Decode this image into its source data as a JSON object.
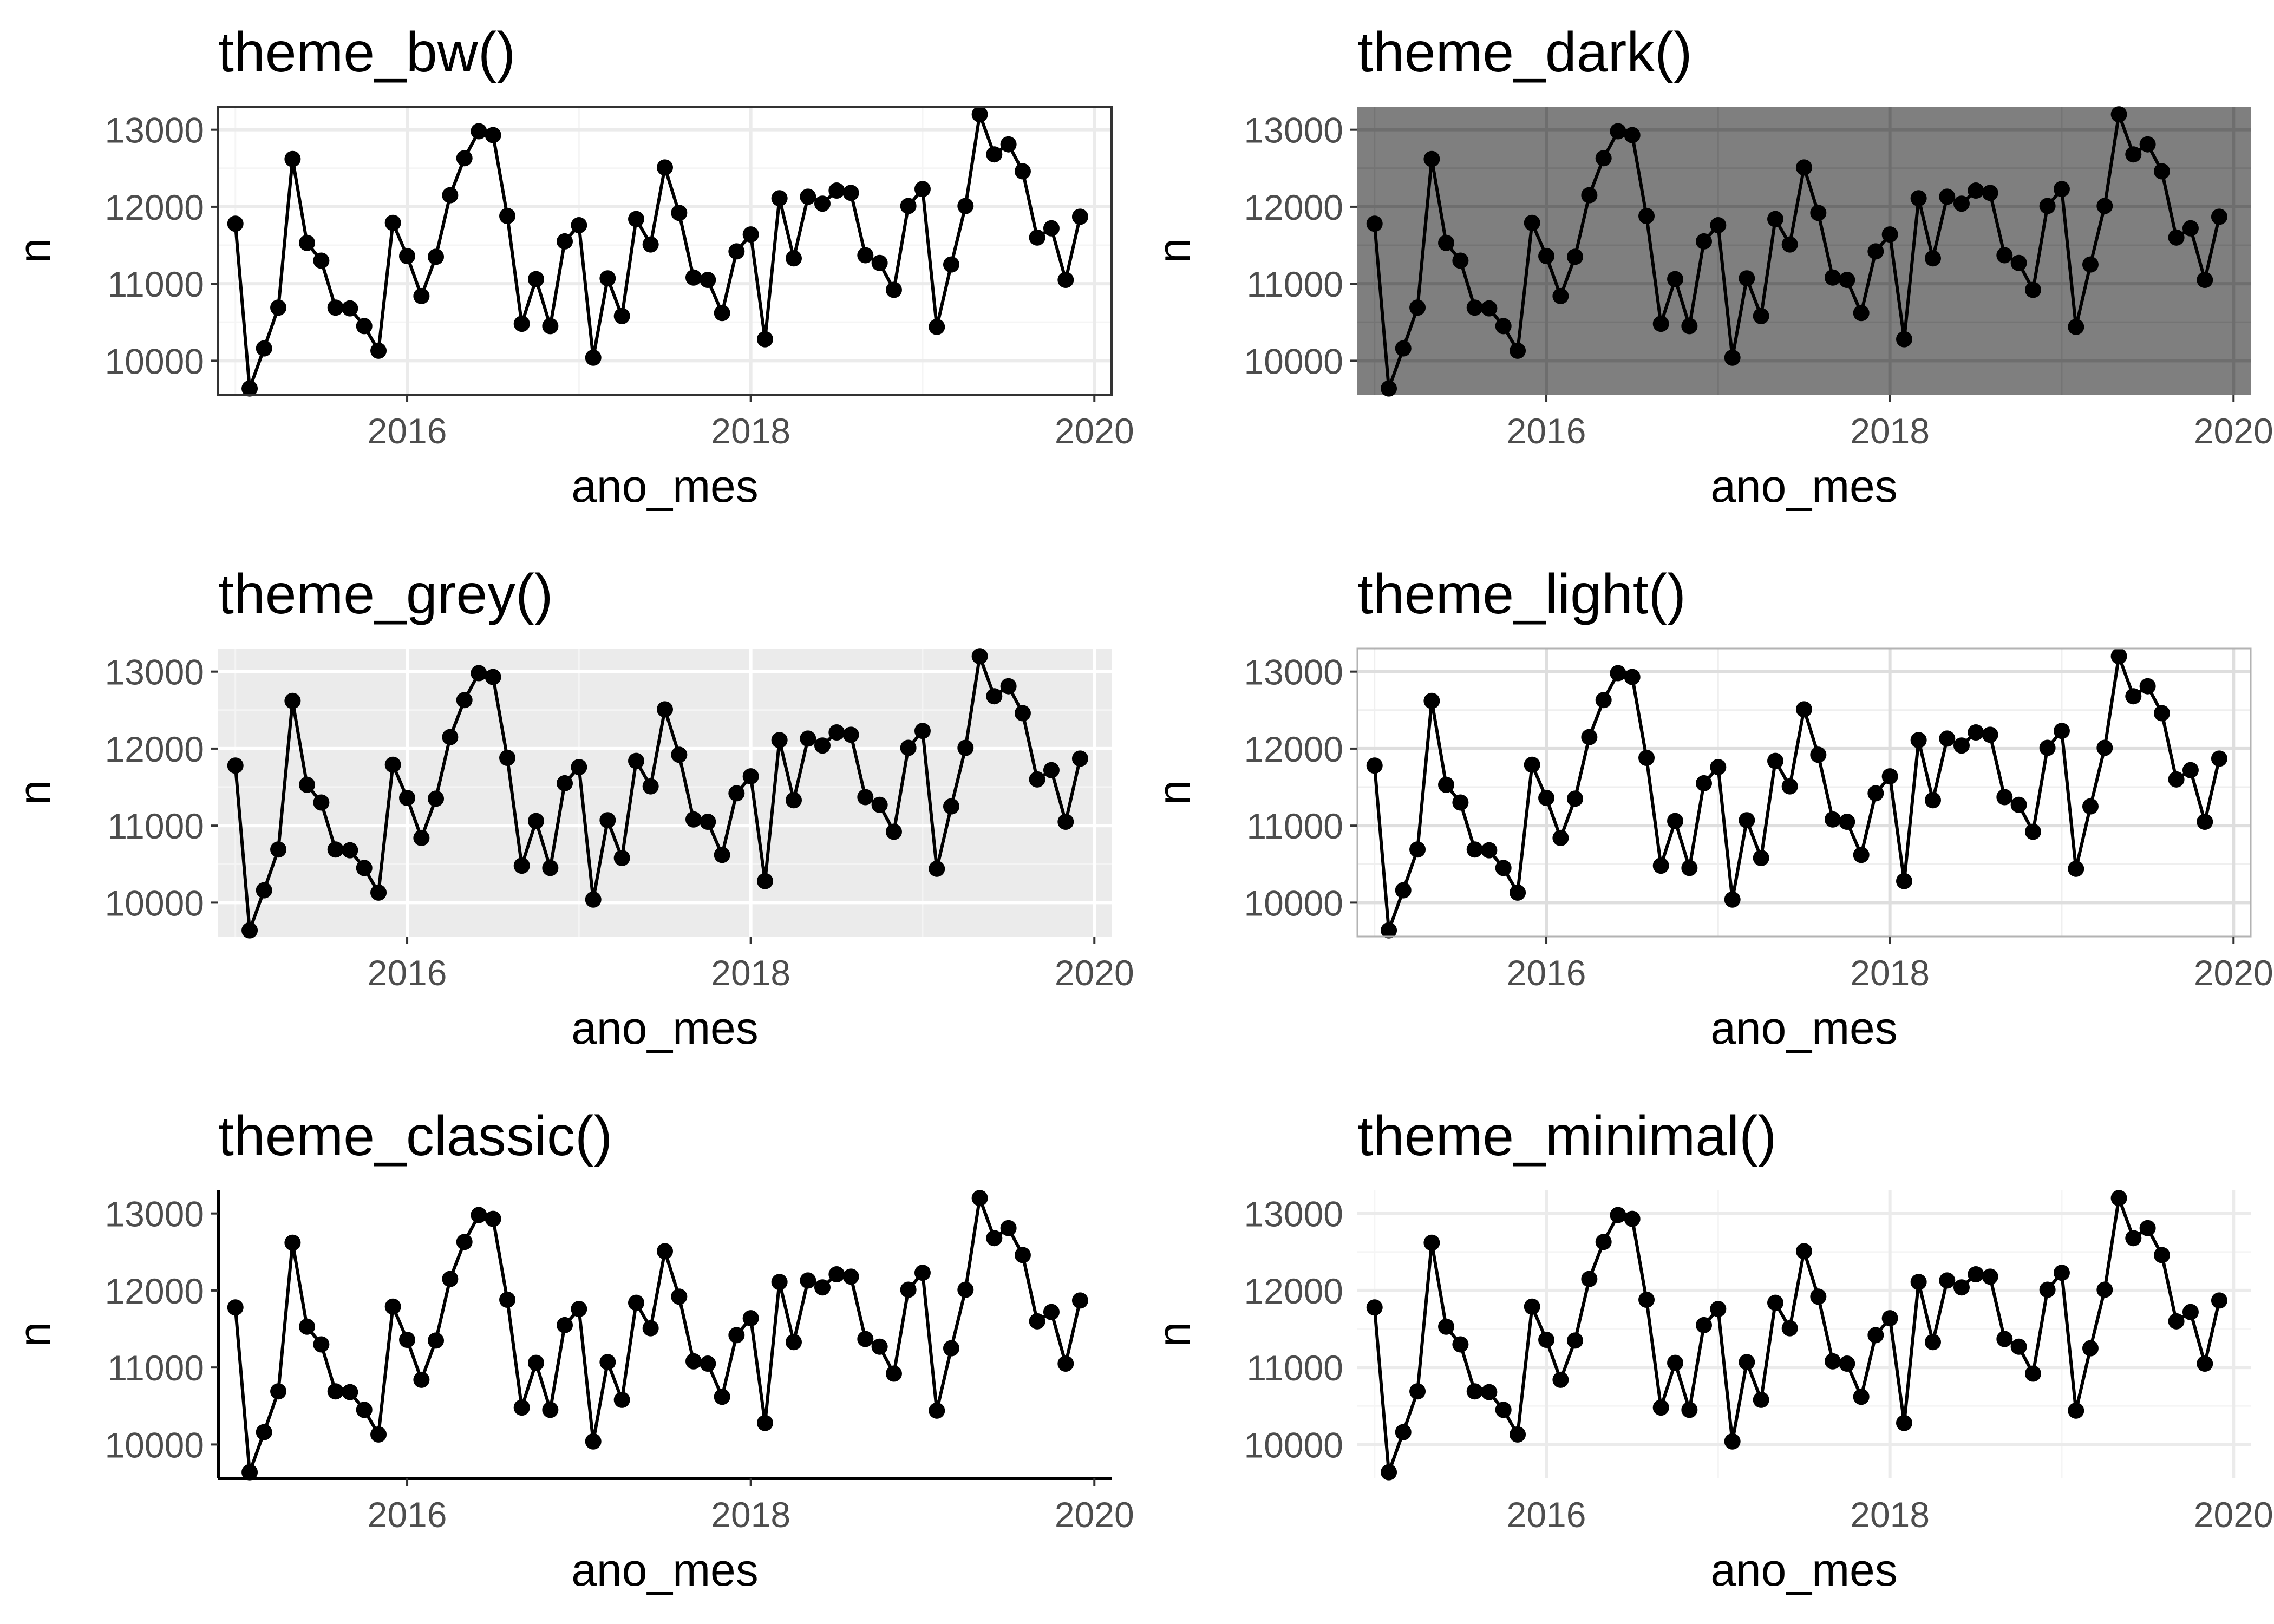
{
  "chart_data": {
    "type": "line",
    "xlabel": "ano_mes",
    "ylabel": "n",
    "xlim": [
      2014.9,
      2020.1
    ],
    "ylim": [
      9560,
      13300
    ],
    "x_ticks": [
      2016,
      2018,
      2020
    ],
    "y_ticks": [
      10000,
      11000,
      12000,
      13000
    ],
    "x": [
      2015.0,
      2015.083,
      2015.167,
      2015.25,
      2015.333,
      2015.417,
      2015.5,
      2015.583,
      2015.667,
      2015.75,
      2015.833,
      2015.917,
      2016.0,
      2016.083,
      2016.167,
      2016.25,
      2016.333,
      2016.417,
      2016.5,
      2016.583,
      2016.667,
      2016.75,
      2016.833,
      2016.917,
      2017.0,
      2017.083,
      2017.167,
      2017.25,
      2017.333,
      2017.417,
      2017.5,
      2017.583,
      2017.667,
      2017.75,
      2017.833,
      2017.917,
      2018.0,
      2018.083,
      2018.167,
      2018.25,
      2018.333,
      2018.417,
      2018.5,
      2018.583,
      2018.667,
      2018.75,
      2018.833,
      2018.917,
      2019.0,
      2019.083,
      2019.167,
      2019.25,
      2019.333,
      2019.417,
      2019.5,
      2019.583,
      2019.667,
      2019.75,
      2019.833,
      2019.917
    ],
    "values": [
      11780,
      9640,
      10160,
      10690,
      12620,
      11530,
      11300,
      10690,
      10680,
      10450,
      10130,
      11790,
      11360,
      10840,
      11350,
      12150,
      12630,
      12980,
      12930,
      11880,
      10480,
      11060,
      10450,
      11550,
      11760,
      10040,
      11070,
      10580,
      11840,
      11510,
      12510,
      11920,
      11080,
      11050,
      10620,
      11420,
      11640,
      10280,
      12110,
      11330,
      12130,
      12040,
      12210,
      12180,
      11370,
      11270,
      10920,
      12010,
      12230,
      10440,
      11250,
      12010,
      13200,
      12680,
      12810,
      12460,
      11600,
      11720,
      11050,
      11870
    ],
    "panels": [
      {
        "title": "theme_bw()",
        "theme": "bw",
        "panel_bg": "#ffffff",
        "grid_major": "#ebebeb",
        "grid_minor": "#f5f5f5",
        "border": "#333333"
      },
      {
        "title": "theme_dark()",
        "theme": "dark",
        "panel_bg": "#7f7f7f",
        "grid_major": "#6e6e6e",
        "grid_minor": "#747474",
        "border": ""
      },
      {
        "title": "theme_grey()",
        "theme": "grey",
        "panel_bg": "#ebebeb",
        "grid_major": "#ffffff",
        "grid_minor": "#f4f4f4",
        "border": ""
      },
      {
        "title": "theme_light()",
        "theme": "light",
        "panel_bg": "#ffffff",
        "grid_major": "#dedede",
        "grid_minor": "#efefef",
        "border": "#b3b3b3"
      },
      {
        "title": "theme_classic()",
        "theme": "classic",
        "panel_bg": "#ffffff",
        "grid_major": "",
        "grid_minor": "",
        "border": ""
      },
      {
        "title": "theme_minimal()",
        "theme": "minimal",
        "panel_bg": "#ffffff",
        "grid_major": "#ebebeb",
        "grid_minor": "#f5f5f5",
        "border": ""
      }
    ],
    "line_color": "#000000",
    "tick_label_color": "#4d4d4d"
  }
}
